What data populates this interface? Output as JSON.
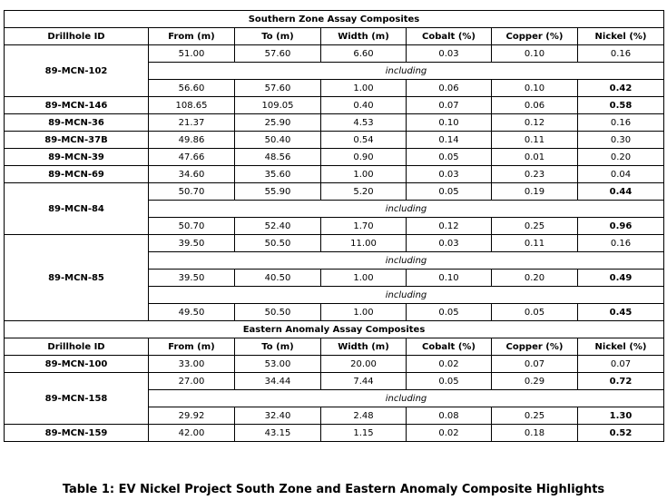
{
  "sections": [
    {
      "title": "Southern Zone Assay Composites",
      "header": [
        "Drillhole ID",
        "From (m)",
        "To (m)",
        "Width (m)",
        "Cobalt (%)",
        "Copper (%)",
        "Nickel (%)"
      ],
      "holes": [
        {
          "id": "89-MCN-102",
          "rows": [
            {
              "cells": [
                "51.00",
                "57.60",
                "6.60",
                "0.03",
                "0.10",
                "0.16"
              ],
              "highlight": false
            },
            "including",
            {
              "cells": [
                "56.60",
                "57.60",
                "1.00",
                "0.06",
                "0.10",
                "0.42"
              ],
              "highlight": true
            }
          ]
        },
        {
          "id": "89-MCN-146",
          "rows": [
            {
              "cells": [
                "108.65",
                "109.05",
                "0.40",
                "0.07",
                "0.06",
                "0.58"
              ],
              "highlight": true
            }
          ]
        },
        {
          "id": "89-MCN-36",
          "rows": [
            {
              "cells": [
                "21.37",
                "25.90",
                "4.53",
                "0.10",
                "0.12",
                "0.16"
              ],
              "highlight": false
            }
          ]
        },
        {
          "id": "89-MCN-37B",
          "rows": [
            {
              "cells": [
                "49.86",
                "50.40",
                "0.54",
                "0.14",
                "0.11",
                "0.30"
              ],
              "highlight": false
            }
          ]
        },
        {
          "id": "89-MCN-39",
          "rows": [
            {
              "cells": [
                "47.66",
                "48.56",
                "0.90",
                "0.05",
                "0.01",
                "0.20"
              ],
              "highlight": false
            }
          ]
        },
        {
          "id": "89-MCN-69",
          "rows": [
            {
              "cells": [
                "34.60",
                "35.60",
                "1.00",
                "0.03",
                "0.23",
                "0.04"
              ],
              "highlight": false
            }
          ]
        },
        {
          "id": "89-MCN-84",
          "rows": [
            {
              "cells": [
                "50.70",
                "55.90",
                "5.20",
                "0.05",
                "0.19",
                "0.44"
              ],
              "highlight": true
            },
            "including",
            {
              "cells": [
                "50.70",
                "52.40",
                "1.70",
                "0.12",
                "0.25",
                "0.96"
              ],
              "highlight": true
            }
          ]
        },
        {
          "id": "89-MCN-85",
          "rows": [
            {
              "cells": [
                "39.50",
                "50.50",
                "11.00",
                "0.03",
                "0.11",
                "0.16"
              ],
              "highlight": false
            },
            "including",
            {
              "cells": [
                "39.50",
                "40.50",
                "1.00",
                "0.10",
                "0.20",
                "0.49"
              ],
              "highlight": true
            },
            "including",
            {
              "cells": [
                "49.50",
                "50.50",
                "1.00",
                "0.05",
                "0.05",
                "0.45"
              ],
              "highlight": true
            }
          ]
        }
      ]
    },
    {
      "title": "Eastern Anomaly Assay Composites",
      "header": [
        "Drillhole ID",
        "From (m)",
        "To (m)",
        "Width (m)",
        "Cobalt (%)",
        "Copper (%)",
        "Nickel (%)"
      ],
      "holes": [
        {
          "id": "89-MCN-100",
          "rows": [
            {
              "cells": [
                "33.00",
                "53.00",
                "20.00",
                "0.02",
                "0.07",
                "0.07"
              ],
              "highlight": false
            }
          ]
        },
        {
          "id": "89-MCN-158",
          "rows": [
            {
              "cells": [
                "27.00",
                "34.44",
                "7.44",
                "0.05",
                "0.29",
                "0.72"
              ],
              "highlight": true
            },
            "including",
            {
              "cells": [
                "29.92",
                "32.40",
                "2.48",
                "0.08",
                "0.25",
                "1.30"
              ],
              "highlight": true
            }
          ]
        },
        {
          "id": "89-MCN-159",
          "rows": [
            {
              "cells": [
                "42.00",
                "43.15",
                "1.15",
                "0.02",
                "0.18",
                "0.52"
              ],
              "highlight": true
            }
          ]
        }
      ]
    }
  ],
  "caption": "Table 1: EV Nickel Project South Zone and Eastern Anomaly Composite Highlights"
}
